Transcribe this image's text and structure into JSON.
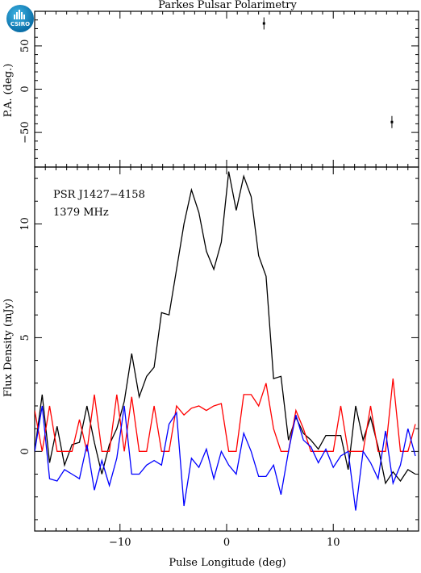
{
  "figure": {
    "title": "Parkes Pulsar Polarimetry",
    "logo_text": "CSIRO"
  },
  "chart_data": [
    {
      "type": "scatter",
      "panel": "top",
      "title": "Parkes Pulsar Polarimetry",
      "xlabel": "",
      "ylabel": "P.A. (deg.)",
      "xlim": [
        -18,
        18
      ],
      "ylim": [
        -90,
        90
      ],
      "yticks": [
        -50,
        0,
        50
      ],
      "points": [
        {
          "x": 3.5,
          "y": 76,
          "err": 7
        },
        {
          "x": 15.5,
          "y": -38,
          "err": 7
        }
      ],
      "grid": false
    },
    {
      "type": "line",
      "panel": "bottom",
      "xlabel": "Pulse Longitude (deg)",
      "ylabel": "Flux Density (mJy)",
      "xlim": [
        -18,
        18
      ],
      "ylim": [
        -3.5,
        12.5
      ],
      "xticks": [
        -10,
        0,
        10
      ],
      "yticks": [
        0,
        5,
        10
      ],
      "annotations": [
        "PSR J1427−4158",
        "1379 MHz"
      ],
      "x": [
        -18.0,
        -17.3,
        -16.6,
        -15.9,
        -15.2,
        -14.5,
        -13.8,
        -13.1,
        -12.4,
        -11.7,
        -11.0,
        -10.3,
        -9.6,
        -8.9,
        -8.2,
        -7.5,
        -6.8,
        -6.1,
        -5.4,
        -4.7,
        -4.0,
        -3.3,
        -2.6,
        -1.9,
        -1.2,
        -0.5,
        0.2,
        0.9,
        1.6,
        2.3,
        3.0,
        3.7,
        4.4,
        5.1,
        5.8,
        6.5,
        7.2,
        7.9,
        8.6,
        9.3,
        10.0,
        10.7,
        11.4,
        12.1,
        12.8,
        13.5,
        14.2,
        14.9,
        15.6,
        16.3,
        17.0,
        17.7
      ],
      "series": [
        {
          "color": "#000000",
          "values": [
            0.0,
            2.5,
            -0.5,
            1.1,
            -0.6,
            0.3,
            0.4,
            2.0,
            0.4,
            -1.0,
            0.3,
            1.0,
            2.2,
            4.3,
            2.4,
            3.3,
            3.7,
            6.1,
            6.0,
            8.0,
            10.0,
            11.5,
            10.5,
            8.8,
            8.0,
            9.2,
            12.3,
            10.6,
            12.1,
            11.2,
            8.6,
            7.7,
            3.2,
            3.3,
            0.5,
            1.5,
            0.8,
            0.5,
            0.1,
            0.7,
            0.7,
            0.7,
            -0.8,
            2.0,
            0.5,
            1.5,
            0.2,
            -1.4,
            -0.9,
            -1.3,
            -0.8,
            -1.0
          ]
        },
        {
          "color": "#ff0000",
          "values": [
            1.8,
            0.0,
            2.0,
            0.0,
            0.0,
            0.0,
            1.4,
            0.0,
            2.5,
            0.0,
            0.0,
            2.5,
            0.0,
            2.4,
            0.0,
            0.0,
            2.0,
            0.0,
            0.0,
            2.0,
            1.6,
            1.9,
            2.0,
            1.8,
            2.0,
            2.1,
            0.0,
            0.0,
            2.5,
            2.5,
            2.0,
            3.0,
            1.0,
            0.0,
            0.0,
            1.8,
            1.0,
            0.0,
            0.0,
            0.0,
            0.0,
            2.0,
            0.0,
            0.0,
            0.0,
            2.0,
            0.0,
            0.0,
            3.2,
            0.0,
            0.0,
            1.2
          ]
        },
        {
          "color": "#0000ff",
          "values": [
            0.0,
            2.0,
            -1.2,
            -1.3,
            -0.8,
            -1.0,
            -1.2,
            0.3,
            -1.7,
            -0.4,
            -1.5,
            -0.3,
            2.0,
            -1.0,
            -1.0,
            -0.6,
            -0.4,
            -0.6,
            1.2,
            1.7,
            -2.4,
            -0.3,
            -0.7,
            0.1,
            -1.2,
            0.0,
            -0.6,
            -1.0,
            0.8,
            0.0,
            -1.1,
            -1.1,
            -0.6,
            -1.9,
            0.0,
            1.6,
            0.5,
            0.2,
            -0.5,
            0.1,
            -0.7,
            -0.2,
            0.0,
            -2.6,
            0.0,
            -0.5,
            -1.2,
            0.9,
            -1.4,
            -0.6,
            1.0,
            -0.2
          ]
        }
      ],
      "grid": false
    }
  ]
}
